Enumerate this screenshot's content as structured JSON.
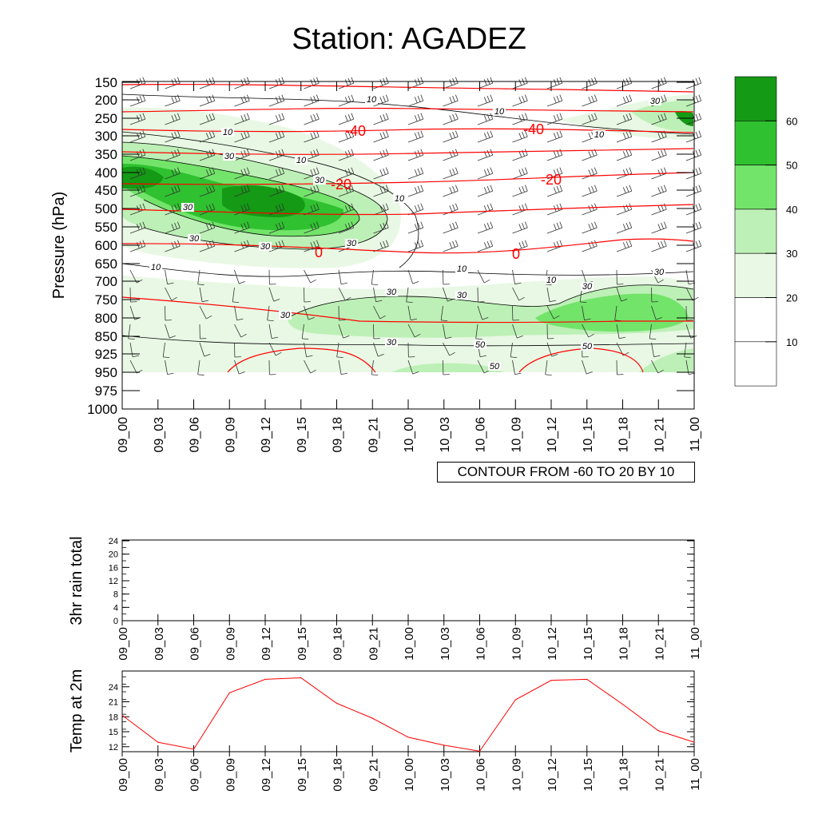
{
  "title": "Station: AGADEZ",
  "footer": "CONTOUR FROM -60 TO 20 BY 10",
  "chart_data": [
    {
      "type": "heatmap",
      "name": "cross-section",
      "title": "Station: AGADEZ",
      "ylabel": "Pressure (hPa)",
      "y_ticks": [
        "150",
        "200",
        "250",
        "300",
        "350",
        "400",
        "450",
        "500",
        "550",
        "600",
        "650",
        "700",
        "750",
        "800",
        "850",
        "925",
        "950",
        "975",
        "1000"
      ],
      "x_ticks": [
        "09_00",
        "09_03",
        "09_06",
        "09_09",
        "09_12",
        "09_15",
        "09_18",
        "09_21",
        "10_00",
        "10_03",
        "10_06",
        "10_09",
        "10_12",
        "10_15",
        "10_18",
        "10_21",
        "11_00"
      ],
      "colorbar_labels": [
        "10",
        "20",
        "30",
        "40",
        "50",
        "60"
      ],
      "colors": [
        "#ffffff",
        "#ffffff",
        "#e8f8e4",
        "#bdf0b6",
        "#72e46a",
        "#2fc12f",
        "#149a14"
      ],
      "temperature_labels": [
        "-40",
        "-40",
        "-20",
        "-20",
        "0",
        "0"
      ],
      "humidity_labels": [
        "10",
        "10",
        "10",
        "10",
        "10",
        "10",
        "10",
        "10",
        "10",
        "30",
        "30",
        "30",
        "30",
        "30",
        "30",
        "30",
        "30",
        "30",
        "30",
        "30",
        "30",
        "30",
        "50",
        "50",
        "50"
      ]
    },
    {
      "type": "line",
      "name": "rain",
      "ylabel": "3hr rain total",
      "x_ticks": [
        "09_00",
        "09_03",
        "09_06",
        "09_09",
        "09_12",
        "09_15",
        "09_18",
        "09_21",
        "10_00",
        "10_03",
        "10_06",
        "10_09",
        "10_12",
        "10_15",
        "10_18",
        "10_21",
        "11_00"
      ],
      "y_ticks": [
        "0",
        "4",
        "8",
        "12",
        "16",
        "20",
        "24"
      ],
      "ylim": [
        0,
        24
      ],
      "values": [
        0,
        0,
        0,
        0,
        0,
        0,
        0,
        0,
        0,
        0,
        0,
        0,
        0,
        0,
        0,
        0,
        0
      ]
    },
    {
      "type": "line",
      "name": "temp",
      "ylabel": "Temp at 2m",
      "x_ticks": [
        "09_00",
        "09_03",
        "09_06",
        "09_09",
        "09_12",
        "09_15",
        "09_18",
        "09_21",
        "10_00",
        "10_03",
        "10_06",
        "10_09",
        "10_12",
        "10_15",
        "10_18",
        "10_21",
        "11_00"
      ],
      "y_ticks": [
        "12",
        "15",
        "18",
        "21",
        "24"
      ],
      "ylim": [
        11,
        27
      ],
      "values": [
        18.3,
        12.9,
        11.5,
        22.8,
        25.5,
        25.8,
        20.7,
        17.7,
        13.9,
        12.3,
        11.1,
        21.4,
        25.3,
        25.5,
        20.5,
        15.2,
        12.9
      ],
      "color": "#ff0000"
    }
  ]
}
